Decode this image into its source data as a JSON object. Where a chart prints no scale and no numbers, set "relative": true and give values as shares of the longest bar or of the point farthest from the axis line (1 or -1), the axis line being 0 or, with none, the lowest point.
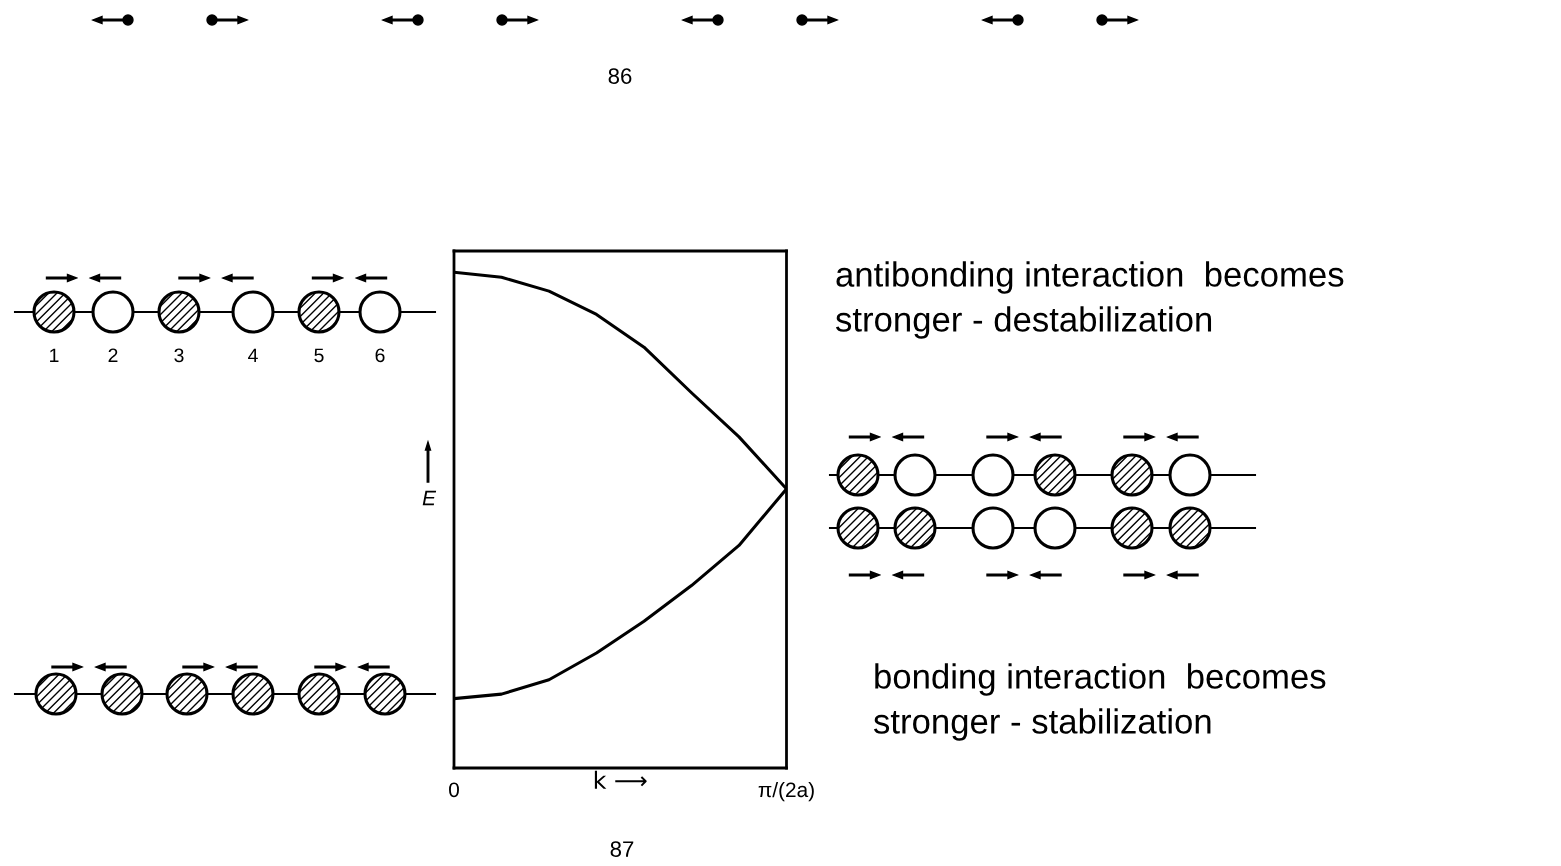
{
  "chart_data": {
    "type": "line",
    "relative": true,
    "xlabel": "k ⟶",
    "ylabel": "E",
    "categories": [
      "0",
      null,
      null,
      null,
      null,
      null,
      null,
      "π/(2a)"
    ],
    "tick_labels": "x",
    "series": [
      {
        "color": "#000000",
        "values": [
          1,
          0.99,
          0.962,
          0.915,
          0.849,
          0.757,
          0.668,
          0.563
        ]
      },
      {
        "color": "#000000",
        "values": [
          0.14,
          0.149,
          0.178,
          0.232,
          0.296,
          0.368,
          0.449,
          0.563
        ]
      }
    ],
    "annotations": [
      "86",
      "87",
      "1",
      "2",
      "3",
      "4",
      "5",
      "6",
      "antibonding interaction  becomes\nstronger - destabilization",
      "bonding interaction  becomes\nstronger - stabilization"
    ]
  }
}
